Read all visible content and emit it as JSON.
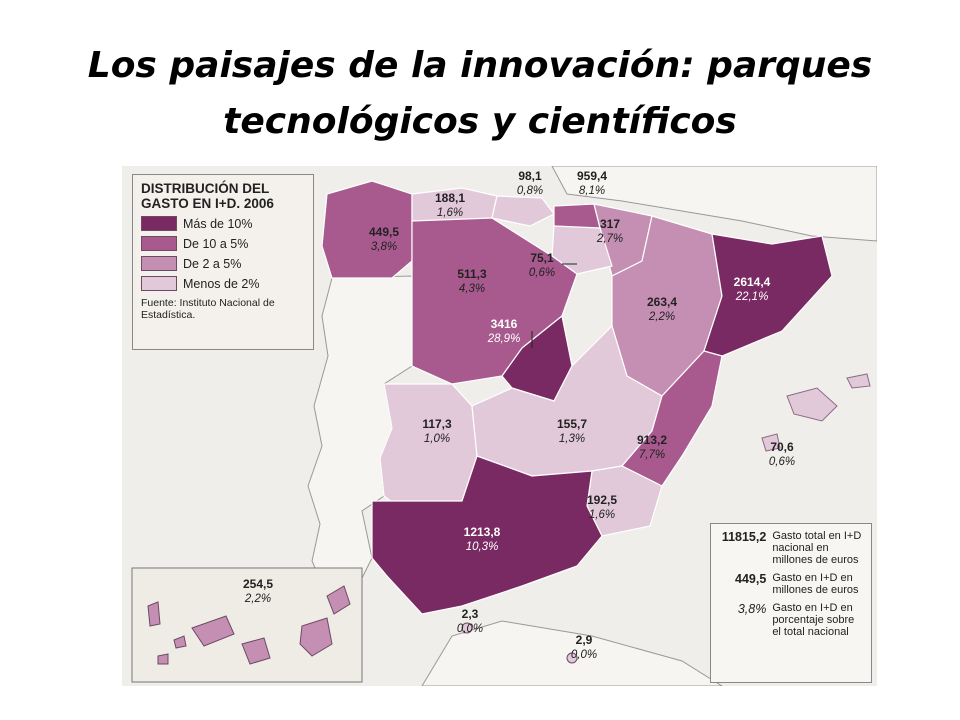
{
  "slide_title": "Los paisajes de la innovación: parques tecnológicos y científicos",
  "legend": {
    "title": "DISTRIBUCIÓN DEL GASTO EN I+D. 2006",
    "items": [
      {
        "label": "Más de 10%",
        "color": "#7a2a62"
      },
      {
        "label": "De 10 a 5%",
        "color": "#a85a8f"
      },
      {
        "label": "De 2 a 5%",
        "color": "#c58fb4"
      },
      {
        "label": "Menos de 2%",
        "color": "#e2c9da"
      }
    ],
    "source": "Fuente: Instituto Nacional de Estadística."
  },
  "key": {
    "items": [
      {
        "value": "11815,2",
        "text": "Gasto total en I+D nacional en millones de euros"
      },
      {
        "value": "449,5",
        "text": "Gasto en I+D en millones de euros"
      },
      {
        "value": "3,8%",
        "text": "Gasto en I+D en porcentaje sobre el total nacional"
      }
    ]
  },
  "regions": [
    {
      "name": "Galicia",
      "amount": "449,5",
      "percent": "3,8%"
    },
    {
      "name": "Asturias",
      "amount": "188,1",
      "percent": "1,6%"
    },
    {
      "name": "Cantabria",
      "amount": "98,1",
      "percent": "0,8%"
    },
    {
      "name": "País Vasco",
      "amount": "959,4",
      "percent": "8,1%"
    },
    {
      "name": "Navarra",
      "amount": "317",
      "percent": "2,7%"
    },
    {
      "name": "La Rioja",
      "amount": "75,1",
      "percent": "0,6%"
    },
    {
      "name": "Castilla y León",
      "amount": "511,3",
      "percent": "4,3%"
    },
    {
      "name": "Aragón",
      "amount": "263,4",
      "percent": "2,2%"
    },
    {
      "name": "Cataluña",
      "amount": "2614,4",
      "percent": "22,1%"
    },
    {
      "name": "Madrid",
      "amount": "3416",
      "percent": "28,9%"
    },
    {
      "name": "Extremadura",
      "amount": "117,3",
      "percent": "1,0%"
    },
    {
      "name": "Castilla-La Mancha",
      "amount": "155,7",
      "percent": "1,3%"
    },
    {
      "name": "Comunidad Valenciana",
      "amount": "913,2",
      "percent": "7,7%"
    },
    {
      "name": "Islas Baleares",
      "amount": "70,6",
      "percent": "0,6%"
    },
    {
      "name": "Murcia",
      "amount": "192,5",
      "percent": "1,6%"
    },
    {
      "name": "Andalucía",
      "amount": "1213,8",
      "percent": "10,3%"
    },
    {
      "name": "Ceuta",
      "amount": "2,3",
      "percent": "0,0%"
    },
    {
      "name": "Melilla",
      "amount": "2,9",
      "percent": "0,0%"
    },
    {
      "name": "Canarias",
      "amount": "254,5",
      "percent": "2,2%"
    }
  ]
}
